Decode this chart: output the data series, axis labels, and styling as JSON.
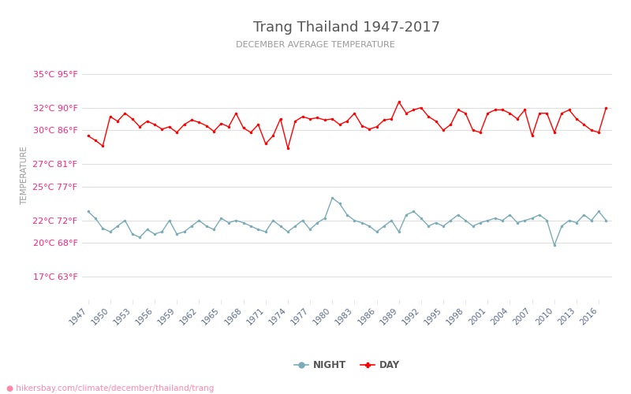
{
  "title": "Trang Thailand 1947-2017",
  "subtitle": "DECEMBER AVERAGE TEMPERATURE",
  "ylabel": "TEMPERATURE",
  "xlabel_url": "hikersbay.com/climate/december/thailand/trang",
  "yticks_c": [
    17,
    20,
    22,
    25,
    27,
    30,
    32,
    35
  ],
  "yticks_f": [
    63,
    68,
    72,
    77,
    81,
    86,
    90,
    95
  ],
  "ymin": 15,
  "ymax": 37,
  "years": [
    1947,
    1948,
    1949,
    1950,
    1951,
    1952,
    1953,
    1954,
    1955,
    1956,
    1957,
    1958,
    1959,
    1960,
    1961,
    1962,
    1963,
    1964,
    1965,
    1966,
    1967,
    1968,
    1969,
    1970,
    1971,
    1972,
    1973,
    1974,
    1975,
    1976,
    1977,
    1978,
    1979,
    1980,
    1981,
    1982,
    1983,
    1984,
    1985,
    1986,
    1987,
    1988,
    1989,
    1990,
    1991,
    1992,
    1993,
    1994,
    1995,
    1996,
    1997,
    1998,
    1999,
    2000,
    2001,
    2002,
    2003,
    2004,
    2005,
    2006,
    2007,
    2008,
    2009,
    2010,
    2011,
    2012,
    2013,
    2014,
    2015,
    2016,
    2017
  ],
  "day_temps": [
    29.5,
    29.1,
    28.6,
    31.2,
    30.8,
    31.5,
    31.0,
    30.3,
    30.8,
    30.5,
    30.1,
    30.3,
    29.8,
    30.5,
    30.9,
    30.7,
    30.4,
    29.9,
    30.6,
    30.3,
    31.5,
    30.2,
    29.8,
    30.5,
    28.8,
    29.5,
    31.0,
    28.4,
    30.8,
    31.2,
    31.0,
    31.1,
    30.9,
    31.0,
    30.5,
    30.8,
    31.5,
    30.4,
    30.1,
    30.3,
    30.9,
    31.0,
    32.5,
    31.5,
    31.8,
    32.0,
    31.2,
    30.8,
    30.0,
    30.5,
    31.8,
    31.5,
    30.0,
    29.8,
    31.5,
    31.8,
    31.8,
    31.5,
    31.0,
    31.8,
    29.5,
    31.5,
    31.5,
    29.8,
    31.5,
    31.8,
    31.0,
    30.5,
    30.0,
    29.8,
    32.0
  ],
  "night_temps": [
    22.8,
    22.2,
    21.3,
    21.0,
    21.5,
    22.0,
    20.8,
    20.5,
    21.2,
    20.8,
    21.0,
    22.0,
    20.8,
    21.0,
    21.5,
    22.0,
    21.5,
    21.2,
    22.2,
    21.8,
    22.0,
    21.8,
    21.5,
    21.2,
    21.0,
    22.0,
    21.5,
    21.0,
    21.5,
    22.0,
    21.2,
    21.8,
    22.2,
    24.0,
    23.5,
    22.5,
    22.0,
    21.8,
    21.5,
    21.0,
    21.5,
    22.0,
    21.0,
    22.5,
    22.8,
    22.2,
    21.5,
    21.8,
    21.5,
    22.0,
    22.5,
    22.0,
    21.5,
    21.8,
    22.0,
    22.2,
    22.0,
    22.5,
    21.8,
    22.0,
    22.2,
    22.5,
    22.0,
    19.8,
    21.5,
    22.0,
    21.8,
    22.5,
    22.0,
    22.8,
    22.0
  ],
  "day_color": "#ff0000",
  "night_color": "#7aabb8",
  "bg_color": "#ffffff",
  "grid_color": "#dddddd",
  "title_color": "#555555",
  "subtitle_color": "#999999",
  "label_color": "#ff2277",
  "ylabel_color": "#999999",
  "xtick_color": "#5a6a8a",
  "url_color": "#ff88aa",
  "pin_color": "#ffcc00"
}
